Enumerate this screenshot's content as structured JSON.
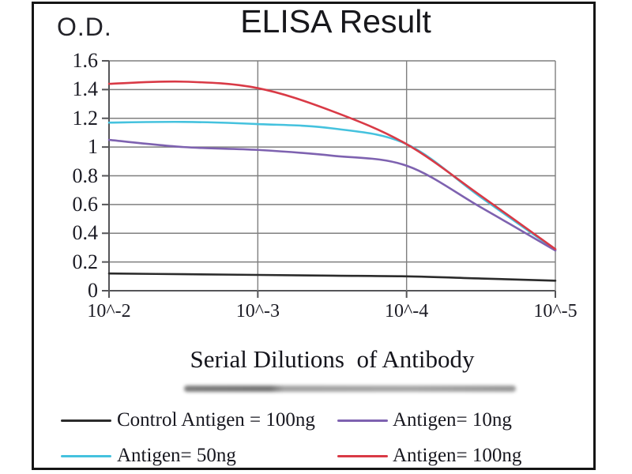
{
  "window": {
    "background_color": "#ffffff",
    "frame_border_color": "#151515"
  },
  "chart": {
    "title": "ELISA Result",
    "y_axis_label": "O.D.",
    "x_axis_label": "Serial Dilutions  of Antibody",
    "y_tick_labels": [
      "0",
      "0.2",
      "0.4",
      "0.6",
      "0.8",
      "1",
      "1.2",
      "1.4",
      "1.6"
    ],
    "x_tick_labels": [
      "10^-2",
      "10^-3",
      "10^-4",
      "10^-5"
    ],
    "grid_color": "#7f7f7f",
    "axis_color": "#555558",
    "text_color": "#1b1b24"
  },
  "chart_data": {
    "type": "line",
    "title": "ELISA Result",
    "xlabel": "Serial Dilutions of Antibody",
    "ylabel": "O.D.",
    "x_scale": "log10",
    "x_exponents": [
      -2,
      -2.5,
      -3,
      -3.5,
      -4,
      -4.5,
      -5
    ],
    "x_tick_exponents": [
      -2,
      -3,
      -4,
      -5
    ],
    "ylim": [
      0,
      1.6
    ],
    "y_tick_step": 0.2,
    "grid": true,
    "legend_position": "bottom",
    "series": [
      {
        "name": "Control Antigen = 100ng",
        "color": "#2b2b2b",
        "values": [
          0.12,
          0.115,
          0.11,
          0.105,
          0.1,
          0.085,
          0.07
        ]
      },
      {
        "name": "Antigen= 10ng",
        "color": "#7e62b0",
        "values": [
          1.05,
          1.0,
          0.98,
          0.94,
          0.87,
          0.58,
          0.28
        ]
      },
      {
        "name": "Antigen= 50ng",
        "color": "#45c2de",
        "values": [
          1.17,
          1.175,
          1.16,
          1.13,
          1.02,
          0.65,
          0.285
        ]
      },
      {
        "name": "Antigen= 100ng",
        "color": "#d93a46",
        "values": [
          1.44,
          1.455,
          1.41,
          1.25,
          1.02,
          0.66,
          0.29
        ]
      }
    ]
  }
}
